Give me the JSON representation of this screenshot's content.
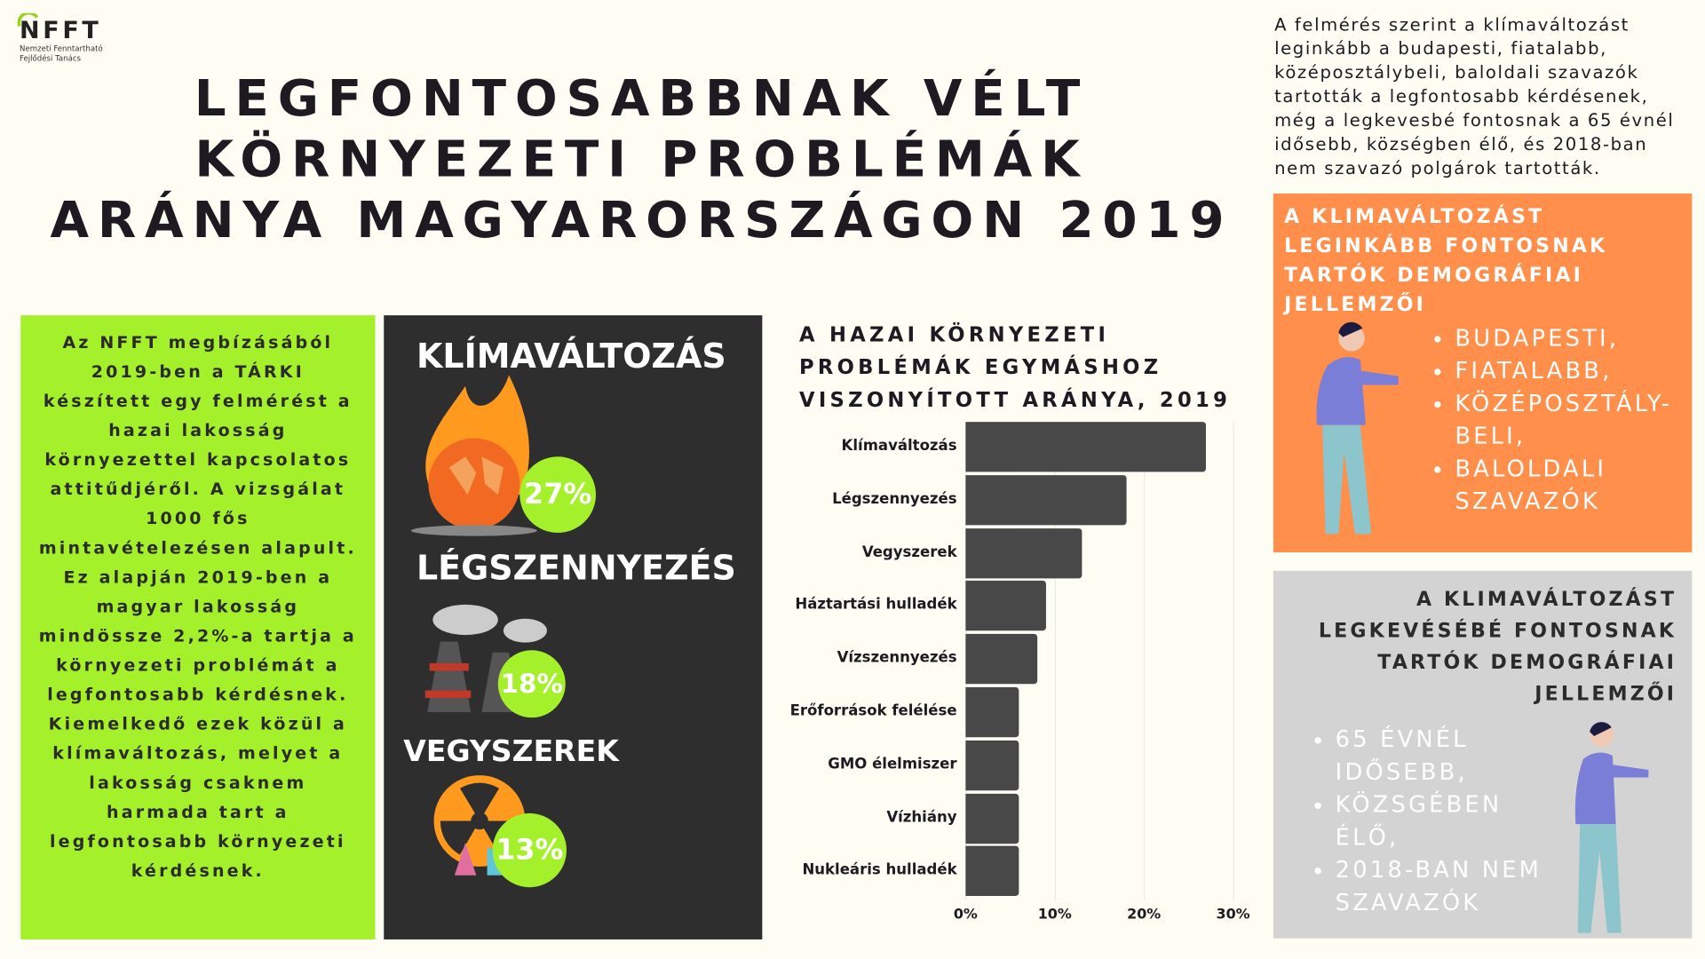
{
  "logo": {
    "mark": "NFFT",
    "line1": "Nemzeti Fenntartható",
    "line2": "Fejlődési Tanács"
  },
  "title": "LEGFONTOSABBNAK VÉLT KÖRNYEZETI PROBLÉMÁK ARÁNYA MAGYARORSZÁGON 2019",
  "intro": "A felmérés szerint a klímaváltozást leginkább a budapesti, fiatalabb, középosztálybeli, baloldali szavazók tartották a legfontosabb kérdésenek, még a legkevesbé fontosnak a 65 évnél idősebb, községben élő, és 2018-ban nem szavazó polgárok tartották.",
  "green_text": "Az NFFT megbízásából 2019-ben a TÁRKI készített egy felmérést a hazai lakosság környezettel kapcsolatos attitűdjéről. A vizsgálat 1000 fős mintavételezésen alapult. Ez alapján 2019-ben a magyar lakosság mindössze 2,2%-a tartja a környezeti problémát a legfontosabb kérdésnek. Kiemelkedő ezek közül a klímaváltozás, melyet a lakosság csaknem harmada tart a legfontosabb környezeti kérdésnek.",
  "highlights": [
    {
      "label": "KLÍMAVÁLTOZÁS",
      "pct": "27%"
    },
    {
      "label": "LÉGSZENNYEZÉS",
      "pct": "18%"
    },
    {
      "label": "VEGYSZEREK",
      "pct": "13%"
    }
  ],
  "colors": {
    "green": "#a4f12b",
    "dark": "#2e2e2e",
    "orange": "#ff8f4b",
    "gray": "#d3d3d3",
    "bar": "#484848"
  },
  "chart_data": {
    "type": "bar",
    "orientation": "horizontal",
    "title": "A HAZAI KÖRNYEZETI PROBLÉMÁK EGYMÁSHOZ VISZONYÍTOTT ARÁNYA, 2019",
    "categories": [
      "Klímaváltozás",
      "Légszennyezés",
      "Vegyszerek",
      "Háztartási hulladék",
      "Vízszennyezés",
      "Erőforrások felélése",
      "GMO élelmiszer",
      "Vízhiány",
      "Nukleáris hulladék"
    ],
    "values": [
      27,
      18,
      13,
      9,
      8,
      6,
      6,
      6,
      6
    ],
    "xlim": [
      0,
      30
    ],
    "ticks": [
      "0%",
      "10%",
      "20%",
      "30%"
    ]
  },
  "orange": {
    "heading": "A KLIMAVÁLTOZÁST LEGINKÁBB FONTOSNAK TARTÓK DEMOGRÁFIAI JELLEMZŐI",
    "items": [
      "BUDAPESTI,",
      "FIATALABB,",
      "KÖZÉPOSZTÁLY-BELI,",
      "BALOLDALI SZAVAZÓK"
    ]
  },
  "gray": {
    "heading": "A KLIMAVÁLTOZÁST LEGKEVÉSÉBÉ FONTOSNAK TARTÓK DEMOGRÁFIAI JELLEMZŐI",
    "items": [
      "65 ÉVNÉL IDŐSEBB,",
      "KÖZSGÉBEN ÉLŐ,",
      "2018-BAN NEM SZAVAZÓK"
    ]
  }
}
